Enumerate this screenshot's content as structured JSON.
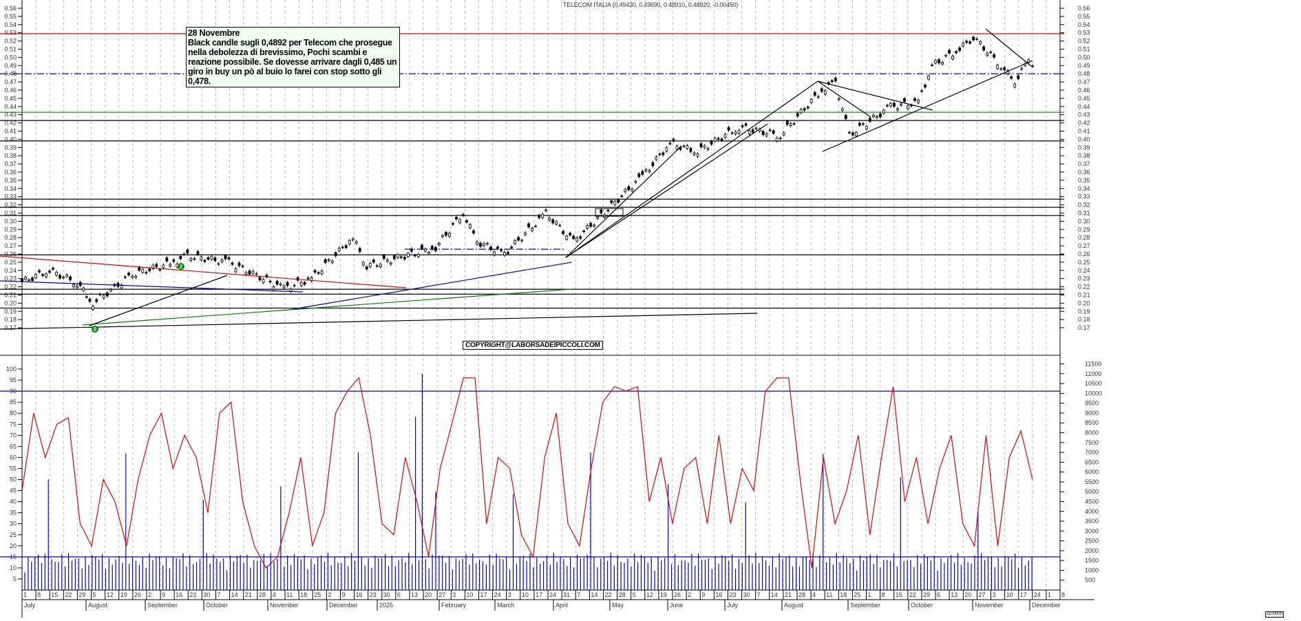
{
  "title": "TELECOM ITALIA (0.49430, 0.49690, 0.48910, 0.48920, -0.00450)",
  "note": {
    "date": "28 Novembre",
    "text": "Black candle sugli 0,4892 per Telecom che  prosegue nella debolezza di brevissimo, Pochi scambi e reazione possibile. Se dovesse arrivare dagli 0,485 un giro in buy un pò al buio lo farei con stop sotto gli 0,478."
  },
  "copyright": "COPYRIGHT@LABORSADEIPICCOLI.COM",
  "volume_units": "x100000",
  "colors": {
    "resistance_red": "#e00000",
    "dashdot_blue": "#0000cc",
    "support_green": "#008000",
    "trend_black": "#000000",
    "oscillator_red": "#e00000",
    "volume_blue": "#0000cc",
    "grid": "#bbbbbb"
  },
  "chart_data": [
    {
      "type": "candlestick",
      "title": "TELECOM ITALIA",
      "ohlc_last": {
        "open": 0.4943,
        "high": 0.4969,
        "low": 0.4891,
        "close": 0.4892,
        "change": -0.0045
      },
      "ylim": [
        0.165,
        0.565
      ],
      "y_ticks": [
        0.17,
        0.18,
        0.19,
        0.2,
        0.21,
        0.22,
        0.23,
        0.24,
        0.25,
        0.26,
        0.27,
        0.28,
        0.29,
        0.3,
        0.31,
        0.32,
        0.33,
        0.34,
        0.35,
        0.36,
        0.37,
        0.38,
        0.39,
        0.4,
        0.41,
        0.42,
        0.43,
        0.44,
        0.45,
        0.46,
        0.47,
        0.48,
        0.49,
        0.5,
        0.51,
        0.52,
        0.53,
        0.54,
        0.55,
        0.56
      ],
      "horizontal_levels": [
        {
          "price": 0.529,
          "color": "red",
          "style": "solid"
        },
        {
          "price": 0.48,
          "color": "blue",
          "style": "dashdot"
        },
        {
          "price": 0.433,
          "color": "green",
          "style": "solid"
        },
        {
          "price": 0.423,
          "color": "black",
          "style": "solid"
        },
        {
          "price": 0.398,
          "color": "black",
          "style": "solid"
        },
        {
          "price": 0.327,
          "color": "black",
          "style": "solid"
        },
        {
          "price": 0.317,
          "color": "black",
          "style": "solid"
        },
        {
          "price": 0.307,
          "color": "black",
          "style": "solid"
        },
        {
          "price": 0.259,
          "color": "black",
          "style": "solid"
        },
        {
          "price": 0.217,
          "color": "black",
          "style": "solid"
        },
        {
          "price": 0.211,
          "color": "black",
          "style": "solid"
        },
        {
          "price": 0.194,
          "color": "black",
          "style": "solid"
        }
      ],
      "price_path_approx": [
        {
          "date": "2024-07-01",
          "close": 0.226
        },
        {
          "date": "2024-07-15",
          "close": 0.24
        },
        {
          "date": "2024-07-29",
          "close": 0.225
        },
        {
          "date": "2024-08-06",
          "close": 0.2
        },
        {
          "date": "2024-08-26",
          "close": 0.235
        },
        {
          "date": "2024-09-16",
          "close": 0.25
        },
        {
          "date": "2024-09-23",
          "close": 0.258
        },
        {
          "date": "2024-10-14",
          "close": 0.25
        },
        {
          "date": "2024-11-11",
          "close": 0.218
        },
        {
          "date": "2024-11-25",
          "close": 0.23
        },
        {
          "date": "2024-12-16",
          "close": 0.28
        },
        {
          "date": "2024-12-23",
          "close": 0.245
        },
        {
          "date": "2025-01-27",
          "close": 0.268
        },
        {
          "date": "2025-02-10",
          "close": 0.31
        },
        {
          "date": "2025-02-17",
          "close": 0.275
        },
        {
          "date": "2025-03-03",
          "close": 0.26
        },
        {
          "date": "2025-03-24",
          "close": 0.31
        },
        {
          "date": "2025-04-07",
          "close": 0.275
        },
        {
          "date": "2025-05-12",
          "close": 0.355
        },
        {
          "date": "2025-05-26",
          "close": 0.395
        },
        {
          "date": "2025-06-09",
          "close": 0.385
        },
        {
          "date": "2025-06-30",
          "close": 0.415
        },
        {
          "date": "2025-07-21",
          "close": 0.405
        },
        {
          "date": "2025-08-11",
          "close": 0.46
        },
        {
          "date": "2025-08-18",
          "close": 0.47
        },
        {
          "date": "2025-08-25",
          "close": 0.405
        },
        {
          "date": "2025-09-15",
          "close": 0.44
        },
        {
          "date": "2025-09-29",
          "close": 0.445
        },
        {
          "date": "2025-10-06",
          "close": 0.49
        },
        {
          "date": "2025-10-20",
          "close": 0.51
        },
        {
          "date": "2025-10-27",
          "close": 0.525
        },
        {
          "date": "2025-11-10",
          "close": 0.49
        },
        {
          "date": "2025-11-17",
          "close": 0.47
        },
        {
          "date": "2025-11-24",
          "close": 0.497
        },
        {
          "date": "2025-11-28",
          "close": 0.4892
        }
      ],
      "annotations": [
        "0 (low Aug 2024)",
        "2 (high Sep 2024)"
      ]
    },
    {
      "type": "line+bar",
      "title": "Oscillator and Volume",
      "left_ylim": [
        0,
        105
      ],
      "left_y_ticks": [
        5,
        10,
        15,
        20,
        25,
        30,
        35,
        40,
        45,
        50,
        55,
        60,
        65,
        70,
        75,
        80,
        85,
        90,
        95,
        100
      ],
      "right_ylim": [
        0,
        11800
      ],
      "right_y_ticks": [
        500,
        1000,
        1500,
        2000,
        2500,
        3000,
        3500,
        4000,
        4500,
        5000,
        5500,
        6000,
        6500,
        7000,
        7500,
        8000,
        8500,
        9000,
        9500,
        10000,
        10500,
        11000,
        11500
      ],
      "right_units": "x100000",
      "oscillator_levels": [
        90,
        15
      ],
      "oscillator_path_approx": [
        45,
        80,
        60,
        75,
        78,
        30,
        20,
        50,
        40,
        20,
        50,
        70,
        80,
        55,
        70,
        60,
        35,
        80,
        85,
        40,
        20,
        10,
        15,
        35,
        60,
        20,
        35,
        80,
        90,
        96,
        70,
        30,
        25,
        60,
        40,
        15,
        55,
        75,
        96,
        96,
        30,
        60,
        55,
        25,
        15,
        60,
        80,
        30,
        20,
        55,
        85,
        92,
        90,
        92,
        40,
        60,
        30,
        55,
        60,
        30,
        70,
        30,
        55,
        45,
        90,
        96,
        96,
        50,
        10,
        60,
        30,
        45,
        70,
        25,
        60,
        92,
        40,
        60,
        30,
        55,
        70,
        30,
        20,
        70,
        20,
        60,
        72,
        50
      ]
    }
  ],
  "x_axis": {
    "day_ticks": [
      "1",
      "8",
      "15",
      "22",
      "29",
      "5",
      "12",
      "19",
      "26",
      "2",
      "9",
      "16",
      "23",
      "30",
      "7",
      "14",
      "21",
      "28",
      "4",
      "11",
      "18",
      "25",
      "2",
      "9",
      "16",
      "23",
      "30",
      "6",
      "13",
      "20",
      "27",
      "3",
      "10",
      "17",
      "24",
      "3",
      "10",
      "17",
      "24",
      "31",
      "7",
      "14",
      "22",
      "28",
      "5",
      "12",
      "19",
      "26",
      "2",
      "9",
      "16",
      "23",
      "30",
      "7",
      "14",
      "21",
      "28",
      "4",
      "11",
      "18",
      "25",
      "1",
      "8",
      "15",
      "22",
      "29",
      "6",
      "13",
      "20",
      "27",
      "3",
      "10",
      "17",
      "24",
      "1",
      "8"
    ],
    "months": [
      "July",
      "August",
      "September",
      "October",
      "November",
      "December",
      "2025",
      "February",
      "March",
      "April",
      "May",
      "June",
      "July",
      "August",
      "September",
      "October",
      "November",
      "December"
    ]
  }
}
